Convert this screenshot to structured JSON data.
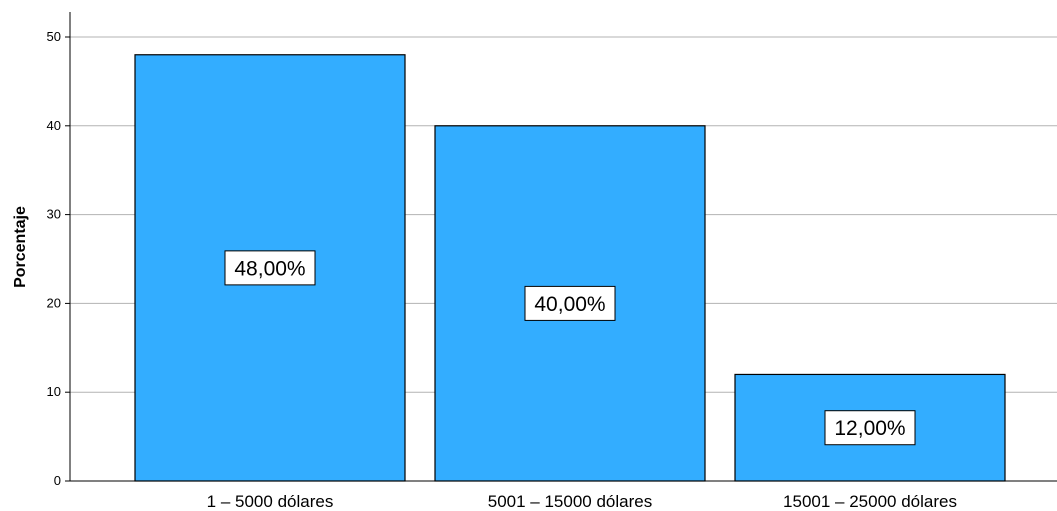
{
  "chart_data": {
    "type": "bar",
    "categories": [
      "1 – 5000 dólares",
      "5001 – 15000 dólares",
      "15001 – 25000 dólares"
    ],
    "values": [
      48,
      40,
      12
    ],
    "data_labels": [
      "48,00%",
      "40,00%",
      "12,00%"
    ],
    "title": "",
    "xlabel": "",
    "ylabel": "Porcentaje",
    "ylim": [
      0,
      52
    ],
    "yticks": [
      0,
      10,
      20,
      30,
      40,
      50
    ],
    "grid": true,
    "legend": "none",
    "bar_color": "#33adff",
    "bar_edge_color": "#000000",
    "grid_color": "#b3b3b3"
  }
}
